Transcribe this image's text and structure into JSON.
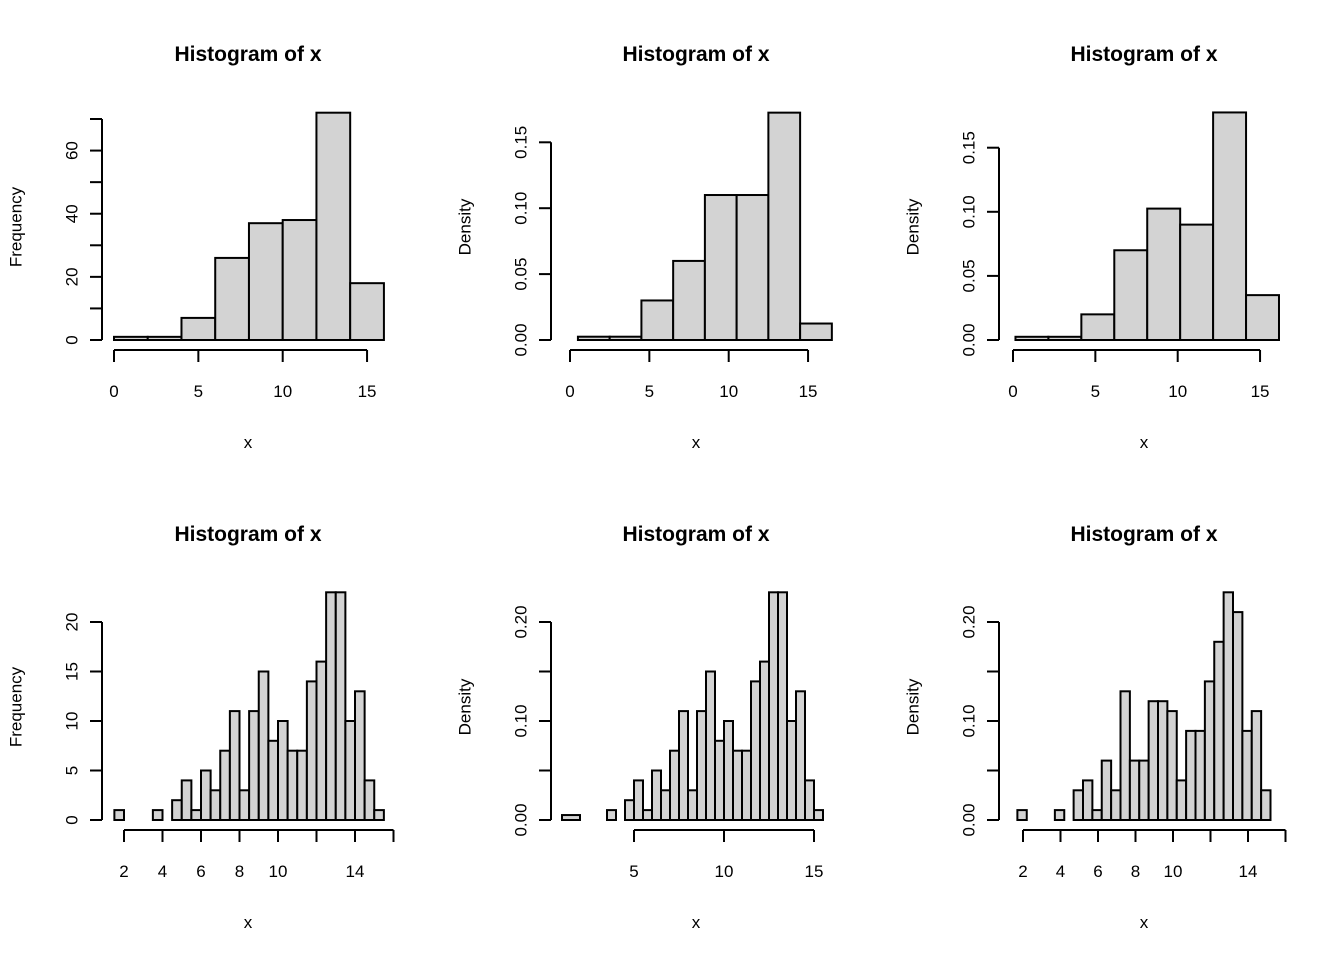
{
  "chart_data": [
    {
      "type": "bar",
      "title": "Histogram of x",
      "xlabel": "x",
      "ylabel": "Frequency",
      "breaks": [
        0,
        2,
        4,
        6,
        8,
        10,
        12,
        14,
        16
      ],
      "values": [
        1,
        1,
        7,
        26,
        37,
        38,
        72,
        18
      ],
      "xticks": [
        0,
        5,
        10,
        15
      ],
      "xtick_labels": [
        "0",
        "5",
        "10",
        "15"
      ],
      "yticks": [
        0,
        10,
        20,
        30,
        40,
        50,
        60,
        70
      ],
      "ytick_labeled": [
        0,
        20,
        40,
        60
      ],
      "ytick_labels": [
        "0",
        "20",
        "40",
        "60"
      ]
    },
    {
      "type": "bar",
      "title": "Histogram of x",
      "xlabel": "x",
      "ylabel": "Density",
      "breaks": [
        -0.5,
        0.5,
        2.5,
        4.5,
        6.5,
        8.5,
        10.5,
        12.5,
        14.5,
        16.5
      ],
      "values": [
        0,
        0.0025,
        0.0025,
        0.03,
        0.06,
        0.11,
        0.11,
        0.1725,
        0.0125
      ],
      "xticks": [
        0,
        5,
        10,
        15
      ],
      "xtick_labels": [
        "0",
        "5",
        "10",
        "15"
      ],
      "yticks": [
        0,
        0.05,
        0.1,
        0.15
      ],
      "ytick_labeled": [
        0,
        0.05,
        0.1,
        0.15
      ],
      "ytick_labels": [
        "0.00",
        "0.05",
        "0.10",
        "0.15"
      ]
    },
    {
      "type": "bar",
      "title": "Histogram of x",
      "xlabel": "x",
      "ylabel": "Density",
      "breaks": [
        -0.2,
        0.15,
        2.15,
        4.15,
        6.15,
        8.15,
        10.15,
        12.15,
        14.15,
        16.15
      ],
      "values": [
        0,
        0.0025,
        0.0025,
        0.02,
        0.07,
        0.1025,
        0.09,
        0.1775,
        0.035
      ],
      "xticks": [
        0,
        5,
        10,
        15
      ],
      "xtick_labels": [
        "0",
        "5",
        "10",
        "15"
      ],
      "yticks": [
        0,
        0.05,
        0.1,
        0.15
      ],
      "ytick_labeled": [
        0,
        0.05,
        0.1,
        0.15
      ],
      "ytick_labels": [
        "0.00",
        "0.05",
        "0.10",
        "0.15"
      ]
    },
    {
      "type": "bar",
      "title": "Histogram of x",
      "xlabel": "x",
      "ylabel": "Frequency",
      "breaks": [
        1.5,
        2,
        2.5,
        3,
        3.5,
        4,
        4.5,
        5,
        5.5,
        6,
        6.5,
        7,
        7.5,
        8,
        8.5,
        9,
        9.5,
        10,
        10.5,
        11,
        11.5,
        12,
        12.5,
        13,
        13.5,
        14,
        14.5,
        15,
        15.5
      ],
      "values": [
        1,
        0,
        0,
        0,
        1,
        0,
        2,
        4,
        1,
        5,
        3,
        7,
        11,
        3,
        11,
        15,
        8,
        10,
        7,
        7,
        14,
        16,
        23,
        23,
        10,
        13,
        4,
        1
      ],
      "xticks": [
        2,
        4,
        6,
        8,
        10,
        12,
        14,
        16
      ],
      "xtick_labeled": [
        2,
        4,
        6,
        8,
        10,
        14
      ],
      "xtick_labels": [
        "2",
        "4",
        "6",
        "8",
        "10",
        "14"
      ],
      "yticks": [
        0,
        5,
        10,
        15,
        20
      ],
      "ytick_labeled": [
        0,
        5,
        10,
        15,
        20
      ],
      "ytick_labels": [
        "0",
        "5",
        "10",
        "15",
        "20"
      ]
    },
    {
      "type": "bar",
      "title": "Histogram of x",
      "xlabel": "x",
      "ylabel": "Density",
      "breaks": [
        1,
        2,
        2.5,
        3,
        3.5,
        4,
        4.5,
        5,
        5.5,
        6,
        6.5,
        7,
        7.5,
        8,
        8.5,
        9,
        9.5,
        10,
        10.5,
        11,
        11.5,
        12,
        12.5,
        13,
        13.5,
        14,
        14.5,
        15,
        15.5
      ],
      "values": [
        0.005,
        0,
        0,
        0,
        0.01,
        0,
        0.02,
        0.04,
        0.01,
        0.05,
        0.03,
        0.07,
        0.11,
        0.03,
        0.11,
        0.15,
        0.08,
        0.1,
        0.07,
        0.07,
        0.14,
        0.16,
        0.23,
        0.23,
        0.1,
        0.13,
        0.04,
        0.01
      ],
      "xticks": [
        5,
        10,
        15
      ],
      "xtick_labels": [
        "5",
        "10",
        "15"
      ],
      "yticks": [
        0,
        0.05,
        0.1,
        0.15,
        0.2
      ],
      "ytick_labeled": [
        0,
        0.1,
        0.2
      ],
      "ytick_labels": [
        "0.00",
        "0.10",
        "0.20"
      ]
    },
    {
      "type": "bar",
      "title": "Histogram of x",
      "xlabel": "x",
      "ylabel": "Density",
      "breaks": [
        1.7,
        2.2,
        2.7,
        3.2,
        3.7,
        4.2,
        4.7,
        5.2,
        5.7,
        6.2,
        6.7,
        7.2,
        7.7,
        8.2,
        8.7,
        9.2,
        9.7,
        10.2,
        10.7,
        11.2,
        11.7,
        12.2,
        12.7,
        13.2,
        13.7,
        14.2,
        14.7,
        15.2
      ],
      "values": [
        0.01,
        0,
        0,
        0,
        0.01,
        0,
        0.03,
        0.04,
        0.01,
        0.06,
        0.03,
        0.13,
        0.06,
        0.06,
        0.12,
        0.12,
        0.11,
        0.04,
        0.09,
        0.09,
        0.14,
        0.18,
        0.23,
        0.21,
        0.09,
        0.11,
        0.03
      ],
      "xticks": [
        2,
        4,
        6,
        8,
        10,
        12,
        14,
        16
      ],
      "xtick_labeled": [
        2,
        4,
        6,
        8,
        10,
        14
      ],
      "xtick_labels": [
        "2",
        "4",
        "6",
        "8",
        "10",
        "14"
      ],
      "yticks": [
        0,
        0.05,
        0.1,
        0.15,
        0.2
      ],
      "ytick_labeled": [
        0,
        0.1,
        0.2
      ],
      "ytick_labels": [
        "0.00",
        "0.10",
        "0.20"
      ]
    }
  ]
}
